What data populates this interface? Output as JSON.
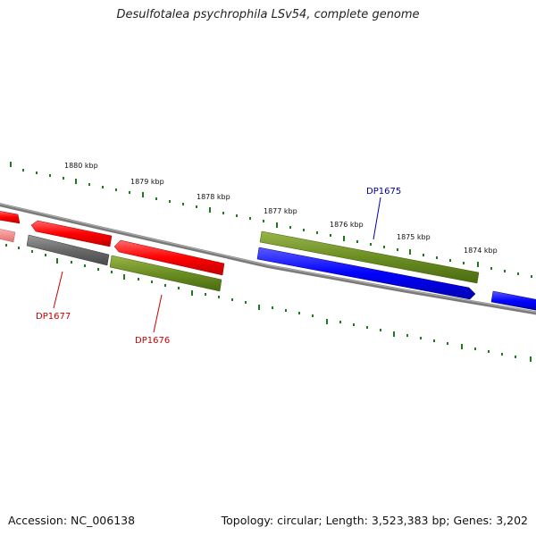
{
  "title": "Desulfotalea psychrophila LSv54, complete genome",
  "footer": {
    "accession": "Accession: NC_006138",
    "summary": "Topology: circular; Length: 3,523,383 bp; Genes: 3,202"
  },
  "colors": {
    "backbone": "#808080",
    "ticks": "#1e7a1e",
    "forward_red": "#ff0000",
    "reverse_red": "#ff0000",
    "olive": "#6b8e23",
    "blue": "#0000ff",
    "gray_gene": "#696969",
    "label_red": "#cc0000",
    "label_blue": "#000099"
  },
  "tick_labels": [
    "1880 kbp",
    "1879 kbp",
    "1878 kbp",
    "1877 kbp",
    "1876 kbp",
    "1875 kbp",
    "1874 kbp"
  ],
  "gene_labels": [
    {
      "id": "DP1675",
      "color": "blue"
    },
    {
      "id": "DP1676",
      "color": "red"
    },
    {
      "id": "DP1677",
      "color": "red"
    }
  ]
}
